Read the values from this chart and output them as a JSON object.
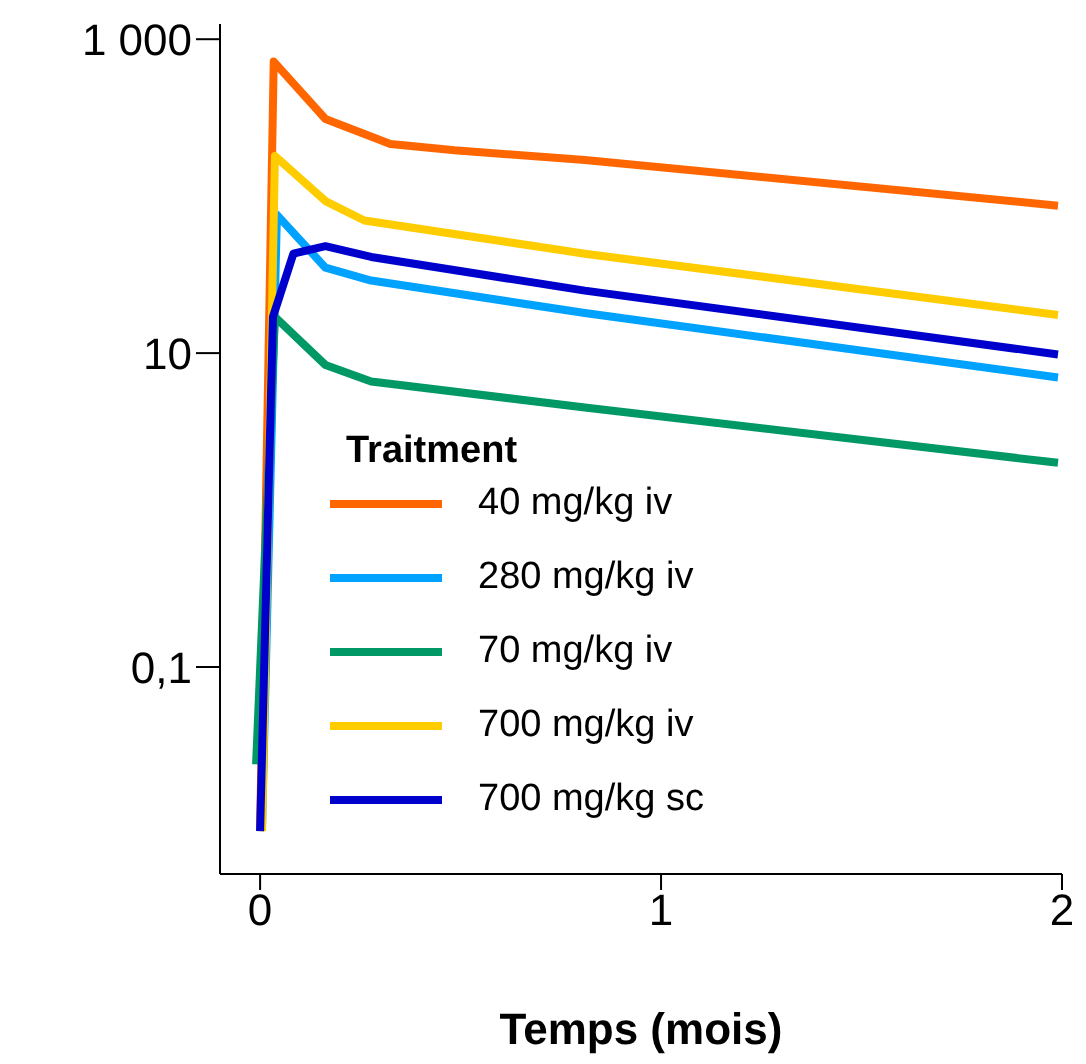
{
  "chart_data": {
    "type": "line",
    "xlabel": "Temps (mois)",
    "legend_title": "Traitment",
    "legend": "bottom left",
    "log": "y",
    "grid": false,
    "marker": "none",
    "line_style": "solid",
    "xlim": [
      -0.1,
      2
    ],
    "xticks": [
      0,
      1,
      2
    ],
    "ylim": [
      0.0048,
      1250
    ],
    "yticks": [
      {
        "value": 0.1,
        "label": "0,1"
      },
      10,
      {
        "value": 1000,
        "label": "1 000"
      }
    ],
    "series": [
      {
        "name": "40 mg/kg iv",
        "color": "#ff6600",
        "x": [
          0,
          0.034,
          0.163,
          0.325,
          0.485,
          0.81,
          1.99
        ],
        "values": [
          0.009,
          720,
          310,
          215,
          196,
          170,
          87
        ]
      },
      {
        "name": "280 mg/kg iv",
        "color": "#00a2ff",
        "x": [
          0.005,
          0.042,
          0.163,
          0.277,
          0.81,
          1.99
        ],
        "values": [
          0.01,
          76,
          35,
          29,
          18,
          7
        ]
      },
      {
        "name": "70 mg/kg iv",
        "color": "#009966",
        "x": [
          -0.01,
          0.037,
          0.163,
          0.277,
          0.81,
          1.99
        ],
        "values": [
          0.024,
          17,
          8.4,
          6.6,
          4.5,
          2
        ]
      },
      {
        "name": "700 mg/kg iv",
        "color": "#ffcc00",
        "x": [
          0.005,
          0.037,
          0.163,
          0.26,
          0.81,
          1.99
        ],
        "values": [
          0.009,
          180,
          93,
          70,
          43,
          17.5
        ]
      },
      {
        "name": "700 mg/kg sc",
        "color": "#0000cc",
        "x": [
          0,
          0.032,
          0.083,
          0.163,
          0.277,
          0.81,
          1.99
        ],
        "values": [
          0.009,
          17,
          43,
          48,
          41,
          25,
          9.8
        ]
      }
    ]
  }
}
